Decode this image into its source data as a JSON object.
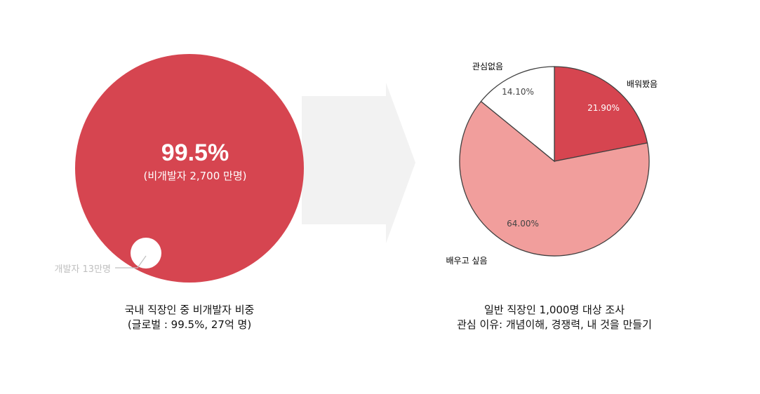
{
  "left": {
    "big_value": "99.5%",
    "big_sub": "(비개발자 2,700 만명)",
    "small_label": "개발자 13만명",
    "caption_line1": "국내 직장인 중 비개발자 비중",
    "caption_line2": "(글로벌 : 99.5%, 27억 명)"
  },
  "right": {
    "caption_line1": "일반 직장인 1,000명 대상 조사",
    "caption_line2": "관심 이유: 개념이해, 경쟁력, 내 것을 만들기"
  },
  "colors": {
    "dark_red": "#D64550",
    "light_red": "#F19E9C",
    "arrow_gray": "#F2F2F2",
    "label_gray": "#BFBFBF"
  },
  "chart_data": [
    {
      "type": "pie",
      "slices": [
        {
          "label": "비개발자",
          "value": 99.5
        },
        {
          "label": "개발자 13만명",
          "value": 0.5
        }
      ]
    },
    {
      "type": "pie",
      "slices": [
        {
          "label": "배워봤음",
          "value": 21.9,
          "value_label": "21.90%",
          "color": "#D64550"
        },
        {
          "label": "배우고 싶음",
          "value": 64.0,
          "value_label": "64.00%",
          "color": "#F19E9C"
        },
        {
          "label": "관심없음",
          "value": 14.1,
          "value_label": "14.10%",
          "color": "#FFFFFF"
        }
      ]
    }
  ]
}
